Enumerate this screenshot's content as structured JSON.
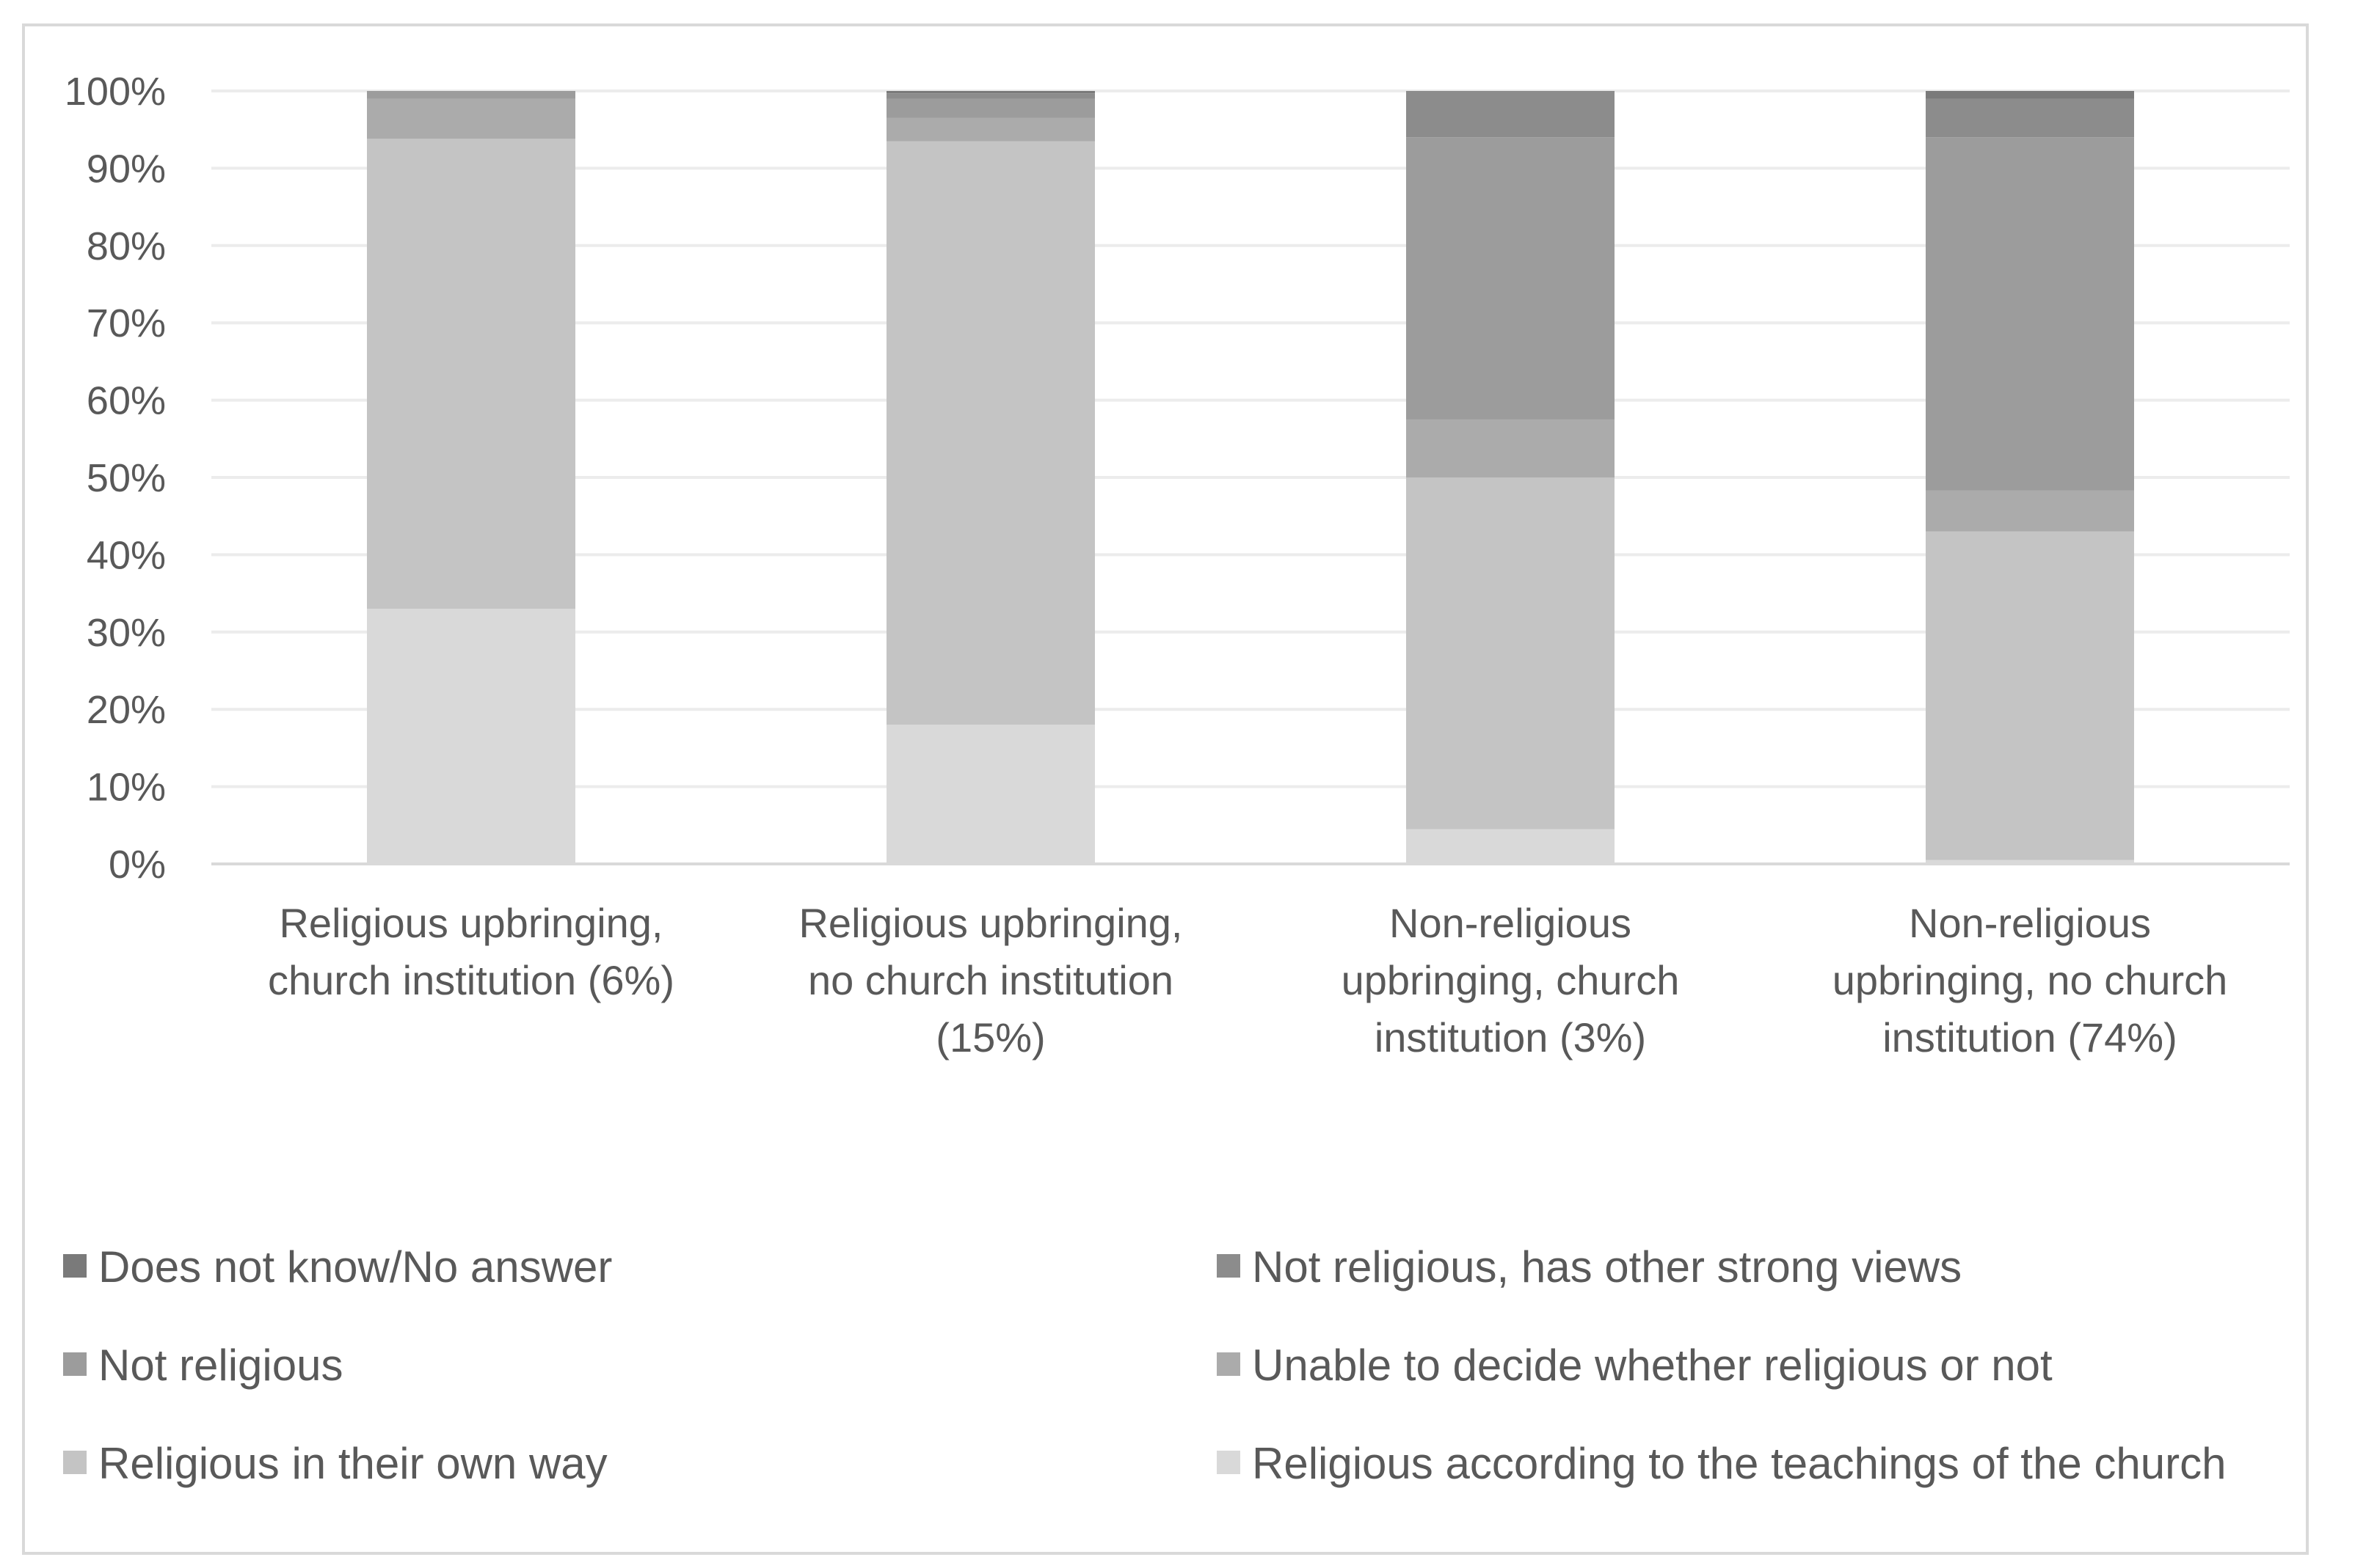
{
  "chart_data": {
    "type": "bar",
    "stacked": true,
    "title": "",
    "xlabel": "",
    "ylabel": "",
    "ylim": [
      0,
      100
    ],
    "yticks": [
      "0%",
      "10%",
      "20%",
      "30%",
      "40%",
      "50%",
      "60%",
      "70%",
      "80%",
      "90%",
      "100%"
    ],
    "grid": true,
    "legend_position": "bottom",
    "categories": [
      [
        "Religious upbringing,",
        "church institution (6%)"
      ],
      [
        "Religious upbringing,",
        "no church institution",
        "(15%)"
      ],
      [
        "Non-religious",
        "upbringing, church",
        "institution (3%)"
      ],
      [
        "Non-religious",
        "upbringing, no church",
        "institution (74%)"
      ]
    ],
    "series": [
      {
        "name": "Religious according to the teachings of the church",
        "color": "#d9d9d9",
        "values": [
          33,
          18,
          4.5,
          0.5
        ]
      },
      {
        "name": "Religious in their own way",
        "color": "#c4c4c4",
        "values": [
          60.8,
          75.5,
          45.5,
          42.5
        ]
      },
      {
        "name": "Unable to decide whether religious or not",
        "color": "#ababab",
        "values": [
          5.2,
          3,
          7.5,
          5.3
        ]
      },
      {
        "name": "Not religious",
        "color": "#9c9c9c",
        "values": [
          1,
          2.5,
          36.5,
          45.7
        ]
      },
      {
        "name": "Not religious, has other strong views",
        "color": "#8c8c8c",
        "values": [
          0,
          0.7,
          6,
          5
        ]
      },
      {
        "name": "Does not know/No answer",
        "color": "#7a7a7a",
        "values": [
          0,
          0.3,
          0,
          1
        ]
      }
    ],
    "legend_order": [
      "Does not know/No answer",
      "Not religious, has other strong views",
      "Not religious",
      "Unable to decide whether religious or not",
      "Religious in their own way",
      "Religious according to the teachings of the church"
    ]
  }
}
